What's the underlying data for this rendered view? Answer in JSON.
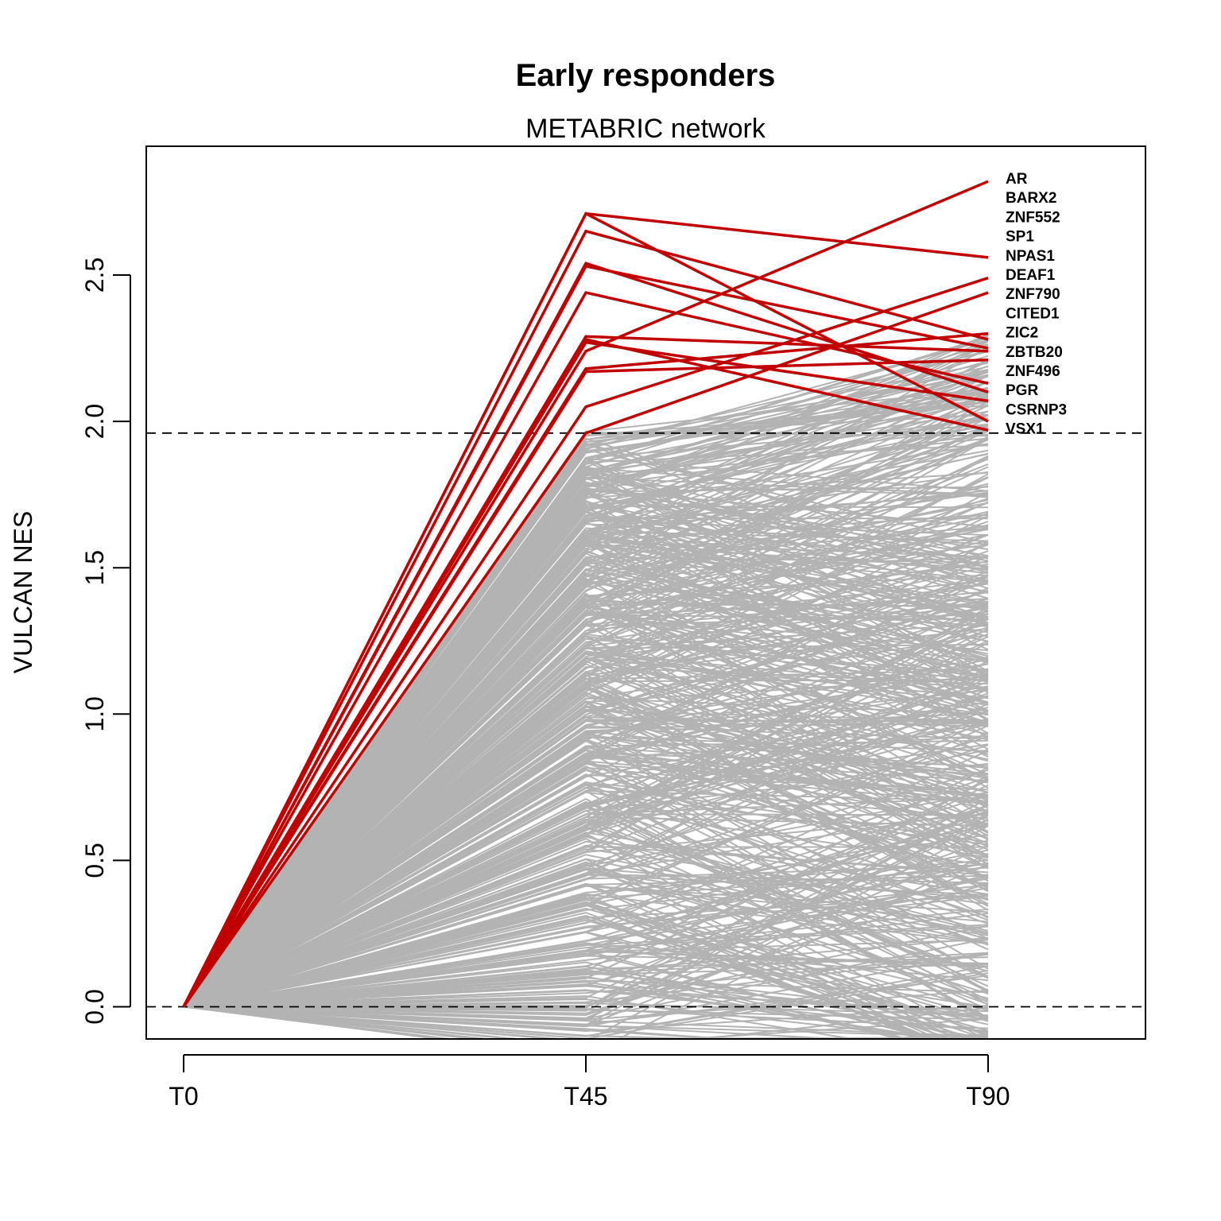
{
  "chart_data": {
    "type": "line",
    "title": "Early responders",
    "subtitle": "METABRIC network",
    "ylabel": "VULCAN NES",
    "xlabel": "",
    "x": [
      "T0",
      "T45",
      "T90"
    ],
    "ylim": [
      -0.11,
      2.94
    ],
    "yticks": [
      0.0,
      0.5,
      1.0,
      1.5,
      2.0,
      2.5
    ],
    "ytick_labels": [
      "0.0",
      "0.5",
      "1.0",
      "1.5",
      "2.0",
      "2.5"
    ],
    "reference_lines": [
      1.96,
      0.0
    ],
    "background_series_color": "#b3b3b3",
    "highlight_color": "#c00000",
    "background_series_note_count": 600,
    "highlighted_series": [
      {
        "name": "AR",
        "values": [
          0,
          2.24,
          2.82
        ]
      },
      {
        "name": "BARX2",
        "values": [
          0,
          2.71,
          2.56
        ]
      },
      {
        "name": "ZNF552",
        "values": [
          0,
          2.05,
          2.49
        ]
      },
      {
        "name": "SP1",
        "values": [
          0,
          1.96,
          2.44
        ]
      },
      {
        "name": "NPAS1",
        "values": [
          0,
          2.18,
          2.3
        ]
      },
      {
        "name": "DEAF1",
        "values": [
          0,
          2.65,
          2.28
        ]
      },
      {
        "name": "ZNF790",
        "values": [
          0,
          2.53,
          2.25
        ]
      },
      {
        "name": "CITED1",
        "values": [
          0,
          2.29,
          2.24
        ]
      },
      {
        "name": "ZIC2",
        "values": [
          0,
          2.17,
          2.21
        ]
      },
      {
        "name": "ZBTB20",
        "values": [
          0,
          2.44,
          2.13
        ]
      },
      {
        "name": "ZNF496",
        "values": [
          0,
          2.54,
          2.1
        ]
      },
      {
        "name": "PGR",
        "values": [
          0,
          2.27,
          2.07
        ]
      },
      {
        "name": "CSRNP3",
        "values": [
          0,
          2.71,
          2.0
        ]
      },
      {
        "name": "VSX1",
        "values": [
          0,
          2.28,
          1.97
        ]
      }
    ],
    "grid": false,
    "legend": "none"
  }
}
